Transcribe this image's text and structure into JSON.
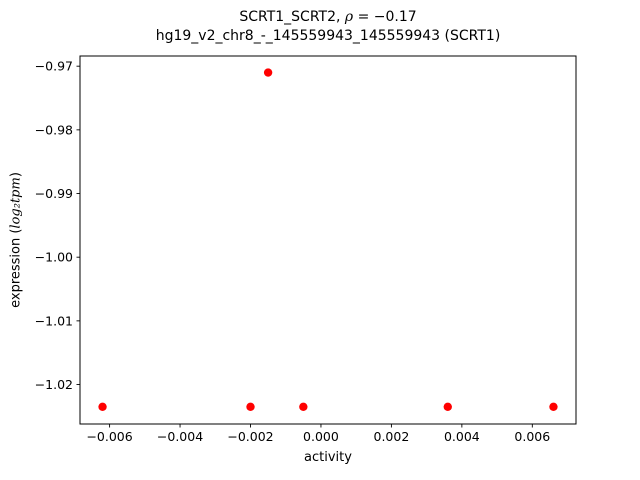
{
  "title": {
    "line1_prefix": "SCRT1_SCRT2, ",
    "line1_rho": "ρ",
    "line1_rest": " = −0.17",
    "line2": "hg19_v2_chr8_-_145559943_145559943 (SCRT1)"
  },
  "axes": {
    "xlabel": "activity",
    "ylabel_prefix": "expression (",
    "ylabel_math": "log₂tpm",
    "ylabel_suffix": ")"
  },
  "chart_data": {
    "type": "scatter",
    "title": "SCRT1_SCRT2, ρ = −0.17",
    "subtitle": "hg19_v2_chr8_-_145559943_145559943 (SCRT1)",
    "xlabel": "activity",
    "ylabel": "expression (log2tpm)",
    "marker_color": "#ff0000",
    "marker_size": 4.2,
    "grid": false,
    "legend": null,
    "xlim": [
      -0.00684,
      0.00724
    ],
    "ylim": [
      -1.0262,
      -0.9684
    ],
    "xticks": [
      -0.006,
      -0.004,
      -0.002,
      0.0,
      0.002,
      0.004,
      0.006
    ],
    "yticks": [
      -0.97,
      -0.98,
      -0.99,
      -1.0,
      -1.01,
      -1.02
    ],
    "points": [
      {
        "x": -0.0062,
        "y": -1.0235
      },
      {
        "x": -0.002,
        "y": -1.0235
      },
      {
        "x": -0.0005,
        "y": -1.0235
      },
      {
        "x": 0.0036,
        "y": -1.0235
      },
      {
        "x": 0.0066,
        "y": -1.0235
      },
      {
        "x": -0.0015,
        "y": -0.971
      }
    ]
  }
}
